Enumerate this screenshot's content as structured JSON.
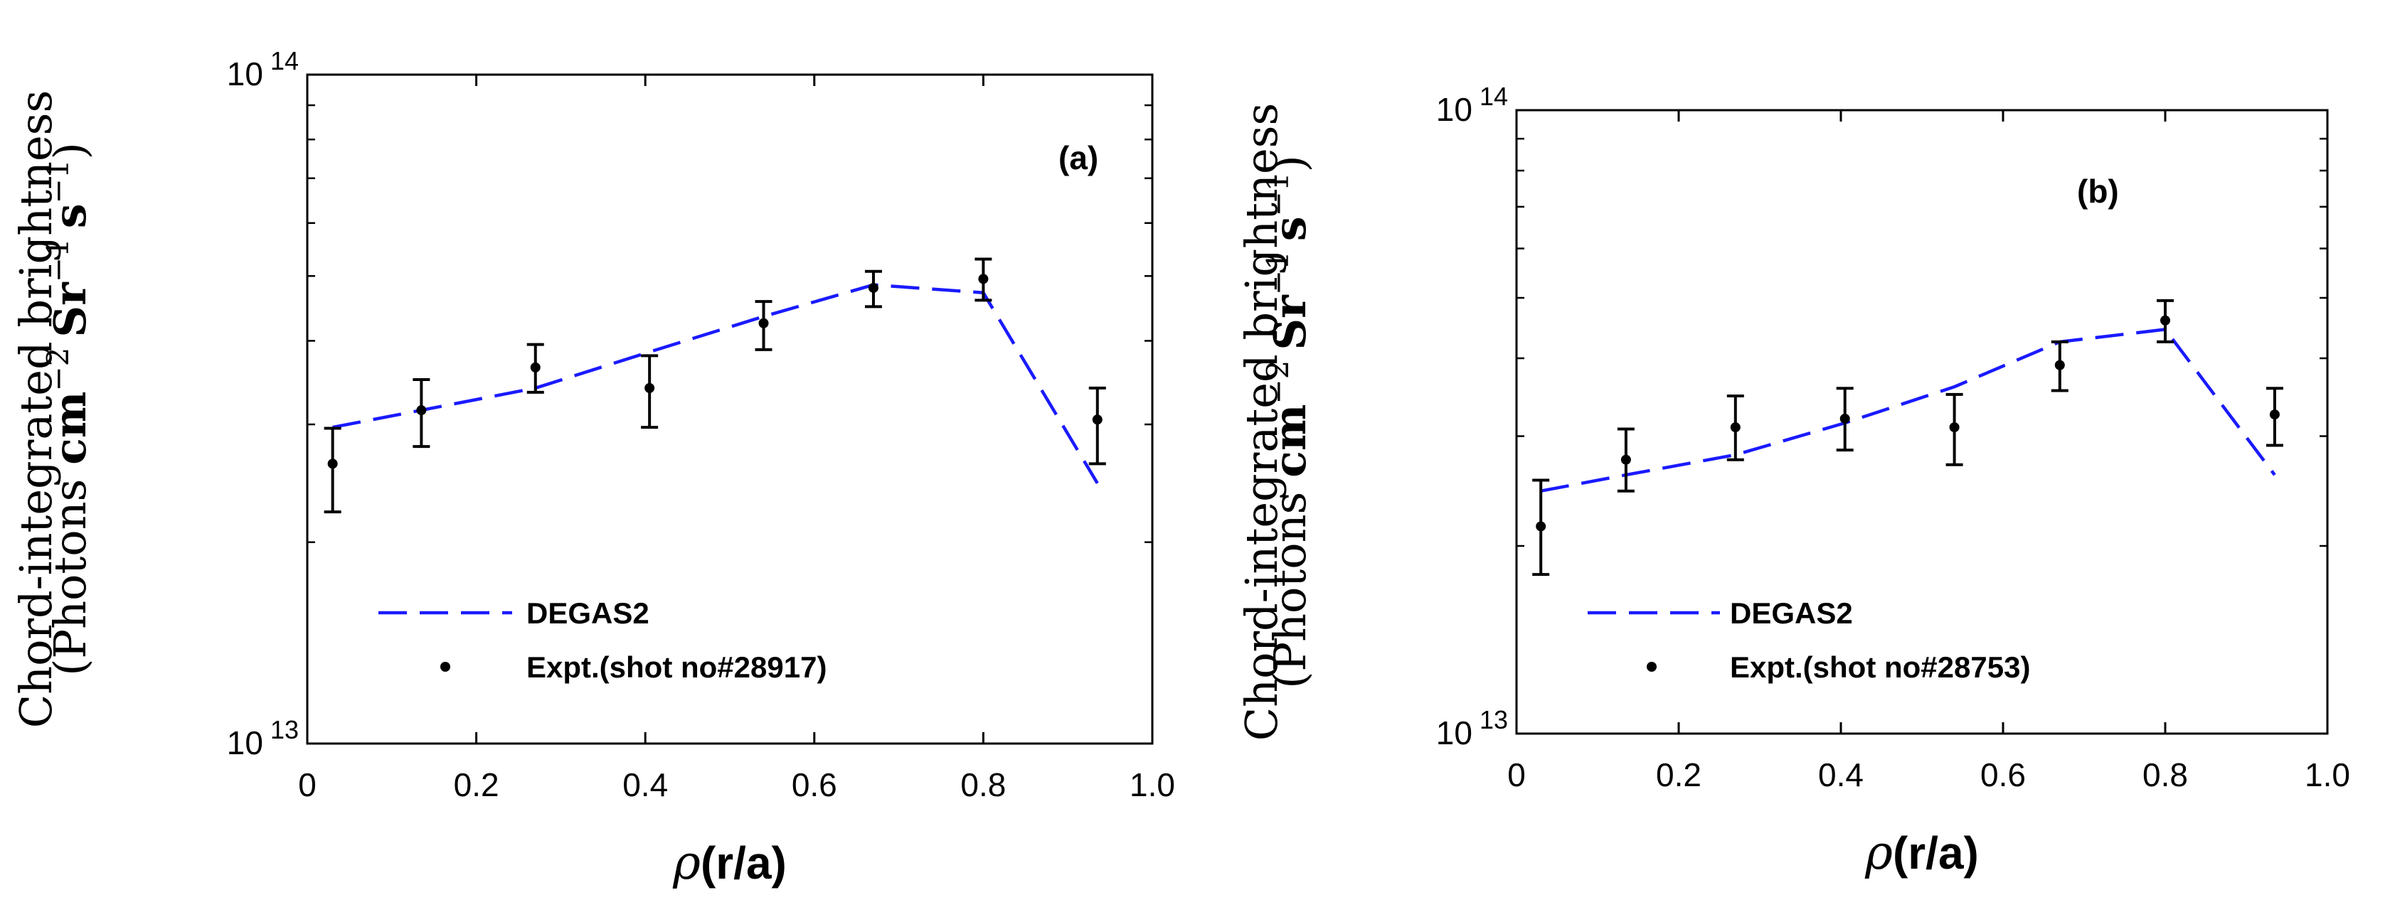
{
  "colors": {
    "model_line": "#1a1aff",
    "points": "#000000",
    "axis": "#000000"
  },
  "chart_data": [
    {
      "type": "line",
      "panel": "(a)",
      "title": "",
      "xlabel": "ρ(r/a)",
      "xlabel_symbol": "ρ",
      "xlabel_rest": "(r/a)",
      "ylabel_line1": "Chord-integrated brightness",
      "ylabel_line2": "(Photons cm−2 Sr−1 s−1)",
      "ylabel_prefix": "(Photons ",
      "ylabel_cm": "cm",
      "ylabel_cm_exp": "−2",
      "ylabel_sr": "Sr",
      "ylabel_sr_exp": "−1",
      "ylabel_s": "s",
      "ylabel_s_exp": "−1",
      "ylabel_suffix": ")",
      "xlim": [
        0,
        1.0
      ],
      "ylim": [
        10000000000000.0,
        100000000000000.0
      ],
      "yscale": "log",
      "xticks": [
        "0",
        "0.2",
        "0.4",
        "0.6",
        "0.8",
        "1.0"
      ],
      "ytick_base": "10",
      "ytick_exps": [
        "13",
        "14"
      ],
      "legend_position": "bottom-left",
      "series": [
        {
          "name": "DEGAS2",
          "style": "dashed",
          "x": [
            0.03,
            0.135,
            0.27,
            0.405,
            0.54,
            0.67,
            0.8,
            0.935
          ],
          "y": [
            29700000000000.0,
            31500000000000.0,
            34000000000000.0,
            38500000000000.0,
            43500000000000.0,
            48500000000000.0,
            47200000000000.0,
            24500000000000.0
          ]
        },
        {
          "name": "Expt.(shot no#28917)",
          "style": "points",
          "x": [
            0.03,
            0.135,
            0.27,
            0.405,
            0.54,
            0.67,
            0.8,
            0.935
          ],
          "y": [
            26200000000000.0,
            31500000000000.0,
            36500000000000.0,
            34000000000000.0,
            42500000000000.0,
            48000000000000.0,
            49500000000000.0,
            30500000000000.0
          ],
          "err_low": [
            22200000000000.0,
            27800000000000.0,
            33500000000000.0,
            29700000000000.0,
            38800000000000.0,
            45000000000000.0,
            46000000000000.0,
            26200000000000.0
          ],
          "err_high": [
            29600000000000.0,
            35000000000000.0,
            39500000000000.0,
            38000000000000.0,
            45800000000000.0,
            50800000000000.0,
            53000000000000.0,
            34000000000000.0
          ]
        }
      ]
    },
    {
      "type": "line",
      "panel": "(b)",
      "title": "",
      "xlabel": "ρ(r/a)",
      "xlabel_symbol": "ρ",
      "xlabel_rest": "(r/a)",
      "ylabel_line1": "Chord-integrated brightness",
      "ylabel_line2": "(Photons cm−2 Sr−1 s−1)",
      "ylabel_prefix": "(Photons ",
      "ylabel_cm": "cm",
      "ylabel_cm_exp": "−2",
      "ylabel_sr": "Sr",
      "ylabel_sr_exp": "−1",
      "ylabel_s": "s",
      "ylabel_s_exp": "−1",
      "ylabel_suffix": ")",
      "xlim": [
        0,
        1.0
      ],
      "ylim": [
        10000000000000.0,
        100000000000000.0
      ],
      "yscale": "log",
      "xticks": [
        "0",
        "0.2",
        "0.4",
        "0.6",
        "0.8",
        "1.0"
      ],
      "ytick_base": "10",
      "ytick_exps": [
        "13",
        "14"
      ],
      "legend_position": "bottom-left",
      "series": [
        {
          "name": "DEGAS2",
          "style": "dashed",
          "x": [
            0.03,
            0.135,
            0.27,
            0.405,
            0.54,
            0.67,
            0.8,
            0.935
          ],
          "y": [
            24500000000000.0,
            26000000000000.0,
            28000000000000.0,
            31500000000000.0,
            36000000000000.0,
            42500000000000.0,
            44500000000000.0,
            26000000000000.0
          ]
        },
        {
          "name": "Expt.(shot no#28753)",
          "style": "points",
          "x": [
            0.03,
            0.135,
            0.27,
            0.405,
            0.54,
            0.67,
            0.8,
            0.935
          ],
          "y": [
            21500000000000.0,
            27500000000000.0,
            31000000000000.0,
            32000000000000.0,
            31000000000000.0,
            39000000000000.0,
            46000000000000.0,
            32500000000000.0
          ],
          "err_low": [
            18000000000000.0,
            24500000000000.0,
            27500000000000.0,
            28500000000000.0,
            27000000000000.0,
            35500000000000.0,
            42500000000000.0,
            29000000000000.0
          ],
          "err_high": [
            25500000000000.0,
            30800000000000.0,
            34800000000000.0,
            35800000000000.0,
            35000000000000.0,
            42500000000000.0,
            49500000000000.0,
            35800000000000.0
          ]
        }
      ]
    }
  ]
}
